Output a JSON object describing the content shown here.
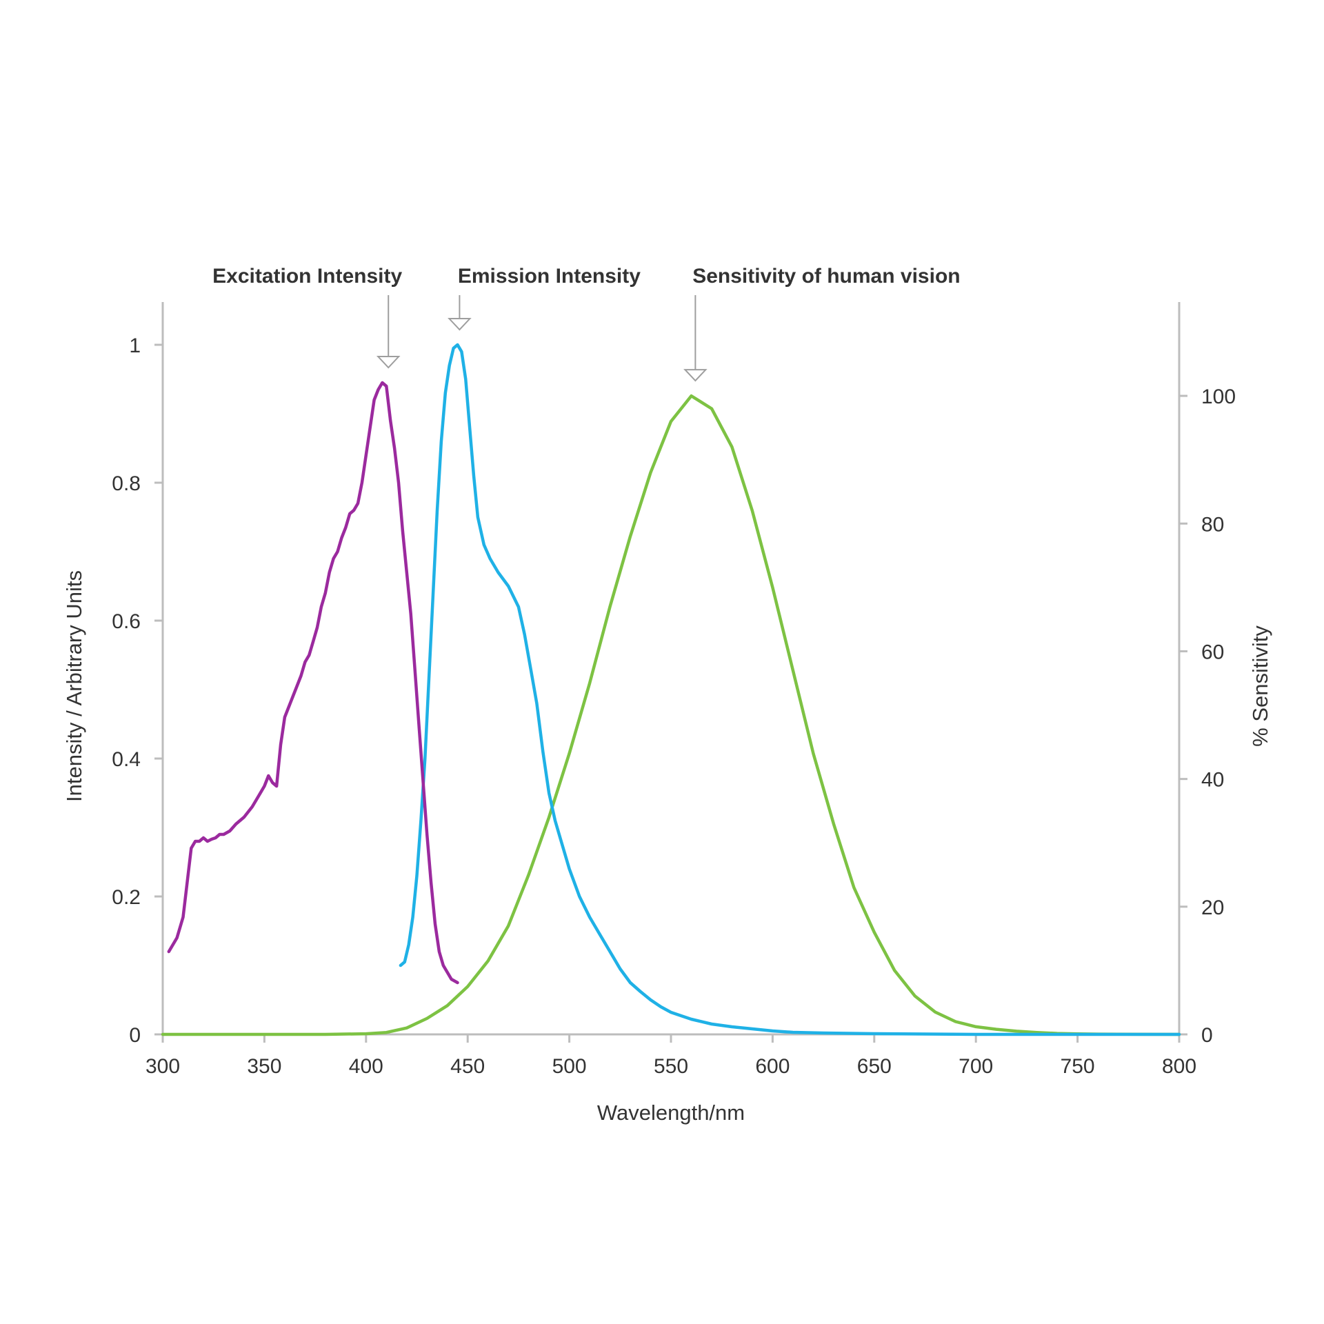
{
  "chart_data": {
    "type": "line",
    "title": "",
    "xlabel": "Wavelength/nm",
    "ylabel": "Intensity / Arbitrary Units",
    "y2label": "% Sensitivity",
    "xlim": [
      300,
      800
    ],
    "ylim": [
      0,
      1.1
    ],
    "y2lim": [
      0,
      118.8
    ],
    "xticks": [
      "300",
      "350",
      "400",
      "450",
      "500",
      "550",
      "600",
      "650",
      "700",
      "750",
      "800"
    ],
    "yticks": [
      "0",
      "0.2",
      "0.4",
      "0.6",
      "0.8",
      "1"
    ],
    "y2ticks": [
      "0",
      "20",
      "40",
      "60",
      "80",
      "100"
    ],
    "grid": false,
    "annotations": [
      {
        "text": "Excitation Intensity",
        "x": 411,
        "series": "Excitation Intensity"
      },
      {
        "text": "Emission Intensity",
        "x": 446,
        "series": "Emission Intensity"
      },
      {
        "text": "Sensitivity of human vision",
        "x": 562,
        "series": "Sensitivity of human vision"
      }
    ],
    "series": [
      {
        "name": "Excitation Intensity",
        "axis": "left",
        "color": "#9b2a9e",
        "x": [
          303,
          307,
          310,
          312,
          314,
          316,
          318,
          320,
          322,
          324,
          326,
          328,
          330,
          333,
          336,
          340,
          344,
          347,
          350,
          352,
          354,
          356,
          358,
          360,
          362,
          364,
          366,
          368,
          370,
          372,
          374,
          376,
          378,
          380,
          382,
          384,
          386,
          388,
          390,
          392,
          394,
          396,
          398,
          400,
          402,
          404,
          406,
          408,
          410,
          412,
          414,
          416,
          418,
          420,
          422,
          424,
          426,
          428,
          430,
          432,
          434,
          436,
          438,
          440,
          442,
          445
        ],
        "y": [
          0.12,
          0.14,
          0.17,
          0.22,
          0.27,
          0.28,
          0.28,
          0.285,
          0.28,
          0.283,
          0.285,
          0.29,
          0.29,
          0.295,
          0.305,
          0.315,
          0.33,
          0.345,
          0.36,
          0.375,
          0.365,
          0.36,
          0.42,
          0.46,
          0.475,
          0.49,
          0.505,
          0.52,
          0.54,
          0.55,
          0.57,
          0.59,
          0.62,
          0.64,
          0.67,
          0.69,
          0.7,
          0.72,
          0.735,
          0.755,
          0.76,
          0.77,
          0.8,
          0.84,
          0.88,
          0.92,
          0.935,
          0.945,
          0.94,
          0.89,
          0.85,
          0.8,
          0.73,
          0.67,
          0.61,
          0.53,
          0.45,
          0.37,
          0.29,
          0.22,
          0.16,
          0.12,
          0.1,
          0.09,
          0.08,
          0.075
        ]
      },
      {
        "name": "Emission Intensity",
        "axis": "left",
        "color": "#1fb1e6",
        "x": [
          417,
          419,
          421,
          423,
          425,
          427,
          429,
          431,
          433,
          435,
          437,
          439,
          441,
          443,
          445,
          447,
          449,
          451,
          453,
          455,
          458,
          461,
          465,
          470,
          475,
          478,
          481,
          484,
          487,
          490,
          493,
          496,
          500,
          505,
          510,
          515,
          520,
          525,
          530,
          535,
          540,
          545,
          550,
          555,
          560,
          570,
          580,
          590,
          600,
          610,
          625,
          650,
          700,
          750,
          800
        ],
        "y": [
          0.1,
          0.105,
          0.13,
          0.17,
          0.23,
          0.31,
          0.4,
          0.52,
          0.64,
          0.76,
          0.86,
          0.93,
          0.97,
          0.995,
          1.0,
          0.99,
          0.95,
          0.88,
          0.81,
          0.75,
          0.71,
          0.69,
          0.67,
          0.65,
          0.62,
          0.58,
          0.53,
          0.48,
          0.41,
          0.35,
          0.31,
          0.28,
          0.24,
          0.2,
          0.17,
          0.145,
          0.12,
          0.095,
          0.075,
          0.062,
          0.05,
          0.04,
          0.032,
          0.027,
          0.022,
          0.015,
          0.011,
          0.008,
          0.005,
          0.003,
          0.002,
          0.001,
          0.0,
          0.0,
          0.0
        ]
      },
      {
        "name": "Sensitivity of human vision",
        "axis": "right",
        "color": "#7dc243",
        "x": [
          300,
          380,
          400,
          410,
          420,
          430,
          440,
          450,
          460,
          470,
          480,
          490,
          500,
          510,
          520,
          530,
          540,
          550,
          560,
          570,
          580,
          590,
          600,
          610,
          620,
          630,
          640,
          650,
          660,
          670,
          680,
          690,
          700,
          710,
          720,
          730,
          740,
          750,
          760,
          780,
          800
        ],
        "y": [
          0,
          0,
          0.1,
          0.3,
          1.0,
          2.5,
          4.5,
          7.5,
          11.5,
          17,
          25,
          34,
          44,
          55,
          67,
          78,
          88,
          96,
          100,
          98,
          92,
          82,
          70,
          57,
          44,
          33,
          23,
          16,
          10,
          6,
          3.5,
          2.0,
          1.2,
          0.8,
          0.5,
          0.3,
          0.15,
          0.08,
          0.04,
          0.01,
          0
        ]
      }
    ]
  }
}
